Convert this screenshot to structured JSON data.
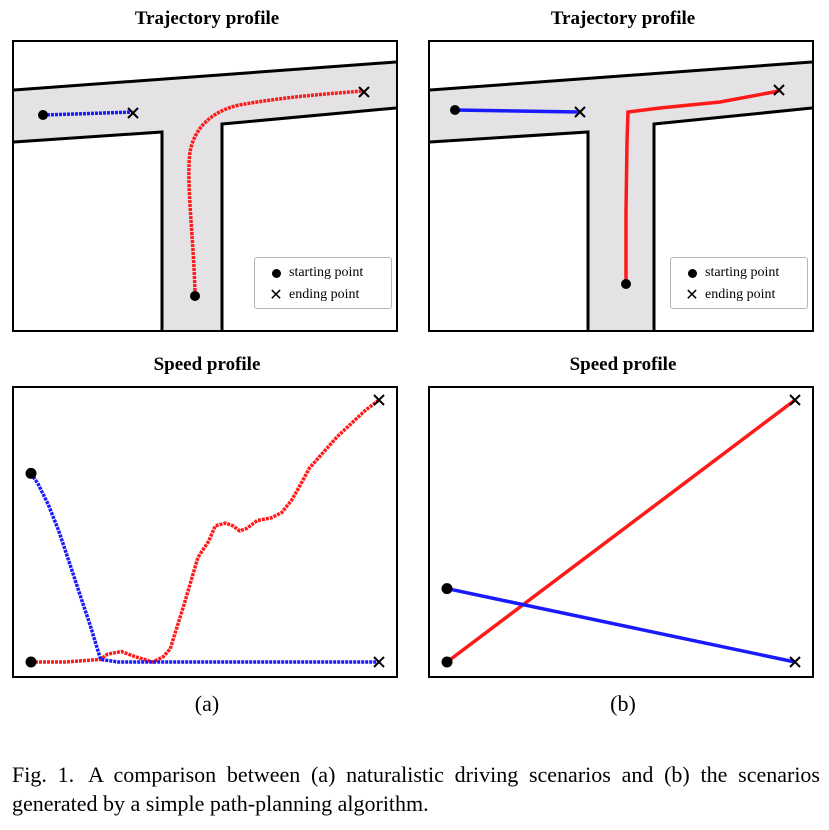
{
  "panels": {
    "a": {
      "label": "(a)",
      "trajectory_title": "Trajectory profile",
      "speed_title": "Speed profile"
    },
    "b": {
      "label": "(b)",
      "trajectory_title": "Trajectory profile",
      "speed_title": "Speed profile"
    }
  },
  "legend": {
    "start_label": "starting point",
    "end_label": "ending point",
    "start_icon": "filled-circle",
    "end_icon": "cross"
  },
  "colors": {
    "red_vehicle": "#ff1a1a",
    "blue_vehicle": "#1a1aff",
    "road": "#e4e2e4",
    "markers": "#000000"
  },
  "caption": {
    "fig_label": "Fig. 1.",
    "text": "A comparison between (a) naturalistic driving scenarios and (b) the scenarios generated by a simple path-planning algorithm."
  },
  "chart_data": [
    {
      "type": "line",
      "title": "Speed profile",
      "panel": "(a)",
      "xlabel": "",
      "ylabel": "",
      "grid": false,
      "xlim": [
        0,
        100
      ],
      "ylim": [
        0,
        100
      ],
      "series": [
        {
          "color": "red",
          "x": [
            0,
            10,
            20,
            22,
            26,
            30,
            35,
            38,
            40,
            44,
            48,
            51,
            53,
            56,
            58,
            60,
            62,
            65,
            69,
            72,
            75,
            78,
            80,
            84,
            88,
            92,
            96,
            100
          ],
          "y": [
            0,
            0,
            1,
            3,
            4,
            2,
            0,
            2,
            5,
            22,
            40,
            46,
            52,
            53,
            52,
            50,
            51,
            54,
            55,
            57,
            62,
            69,
            74,
            80,
            86,
            91,
            96,
            100
          ]
        },
        {
          "color": "blue",
          "x": [
            0,
            2,
            5,
            8,
            11,
            14,
            17,
            20,
            25,
            40,
            60,
            80,
            100
          ],
          "y": [
            72,
            68,
            60,
            50,
            38,
            26,
            14,
            1,
            0,
            0,
            0,
            0,
            0
          ]
        }
      ]
    },
    {
      "type": "line",
      "title": "Speed profile",
      "panel": "(b)",
      "xlabel": "",
      "ylabel": "",
      "grid": false,
      "xlim": [
        0,
        100
      ],
      "ylim": [
        0,
        100
      ],
      "series": [
        {
          "color": "red",
          "x": [
            0,
            100
          ],
          "y": [
            0,
            100
          ]
        },
        {
          "color": "blue",
          "x": [
            0,
            100
          ],
          "y": [
            28,
            0
          ]
        }
      ]
    }
  ]
}
